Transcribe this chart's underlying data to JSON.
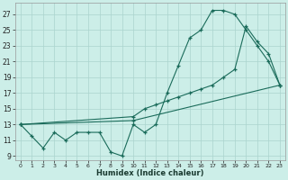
{
  "xlabel": "Humidex (Indice chaleur)",
  "background_color": "#cceee8",
  "grid_color": "#aad4ce",
  "line_color": "#1a6b5a",
  "xlim": [
    -0.5,
    23.5
  ],
  "ylim": [
    8.5,
    28.5
  ],
  "xticks": [
    0,
    1,
    2,
    3,
    4,
    5,
    6,
    7,
    8,
    9,
    10,
    11,
    12,
    13,
    14,
    15,
    16,
    17,
    18,
    19,
    20,
    21,
    22,
    23
  ],
  "yticks": [
    9,
    11,
    13,
    15,
    17,
    19,
    21,
    23,
    25,
    27
  ],
  "line1_x": [
    0,
    1,
    2,
    3,
    4,
    5,
    6,
    7,
    8,
    9,
    10,
    11,
    12,
    13,
    14,
    15,
    16,
    17,
    18,
    19,
    20,
    21,
    22,
    23
  ],
  "line1_y": [
    13,
    11.5,
    10,
    12,
    11,
    12,
    12,
    12,
    9.5,
    9,
    13,
    12,
    13,
    17,
    20.5,
    24,
    25,
    27.5,
    27.5,
    27,
    25,
    23,
    21,
    18
  ],
  "line2_x": [
    0,
    10,
    11,
    12,
    13,
    14,
    15,
    16,
    17,
    18,
    19,
    20,
    21,
    22,
    23
  ],
  "line2_y": [
    13,
    14,
    15,
    15.5,
    16,
    16.5,
    17,
    17.5,
    18,
    19,
    20,
    25.5,
    23.5,
    22,
    18
  ],
  "line3_x": [
    0,
    10,
    23
  ],
  "line3_y": [
    13,
    13.5,
    18
  ]
}
